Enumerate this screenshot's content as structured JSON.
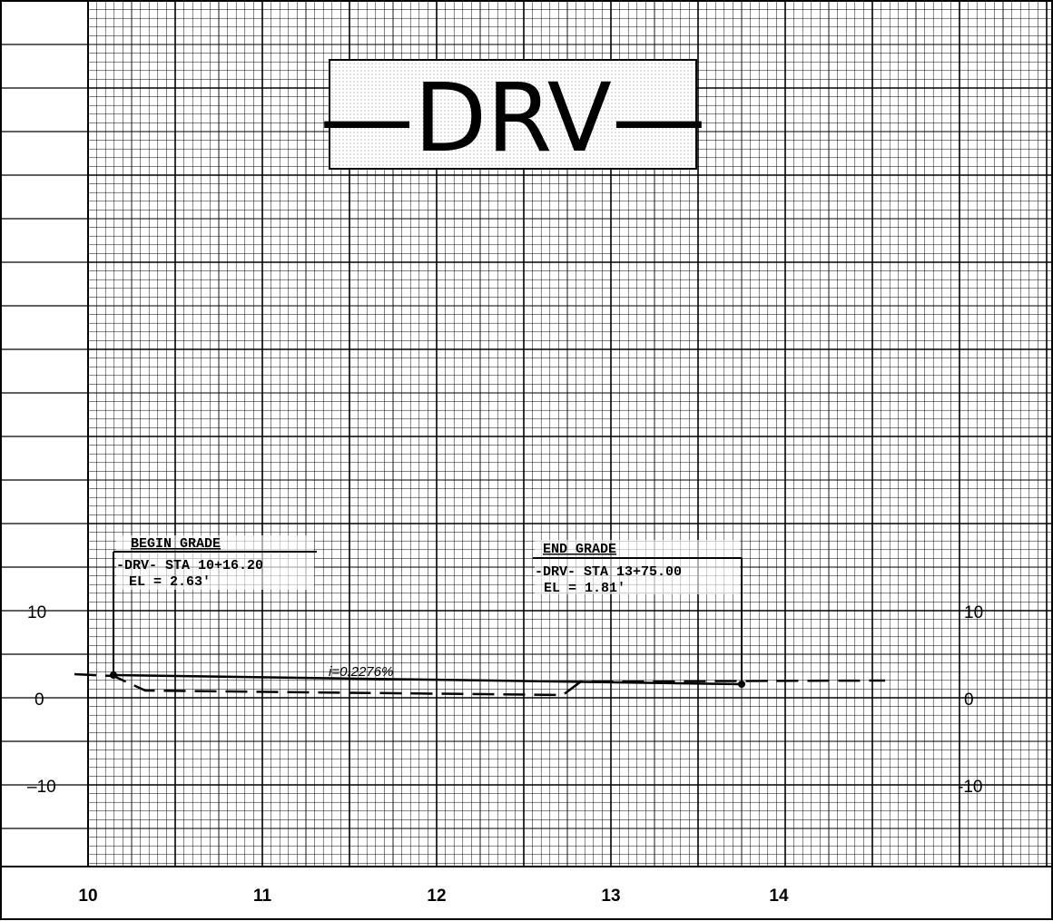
{
  "title": "—DRV—",
  "begin_grade": {
    "heading": "BEGIN GRADE",
    "station": "-DRV- STA 10+16.20",
    "elevation": "EL = 2.63'"
  },
  "end_grade": {
    "heading": "END GRADE",
    "station": "-DRV- STA 13+75.00",
    "elevation": "EL = 1.81'"
  },
  "grade_label": "i=0.2276%",
  "left_axis": [
    "10",
    "0",
    "–10"
  ],
  "right_axis": [
    "10",
    "0",
    "-10"
  ],
  "stations": [
    "10",
    "11",
    "12",
    "13",
    "14"
  ]
}
